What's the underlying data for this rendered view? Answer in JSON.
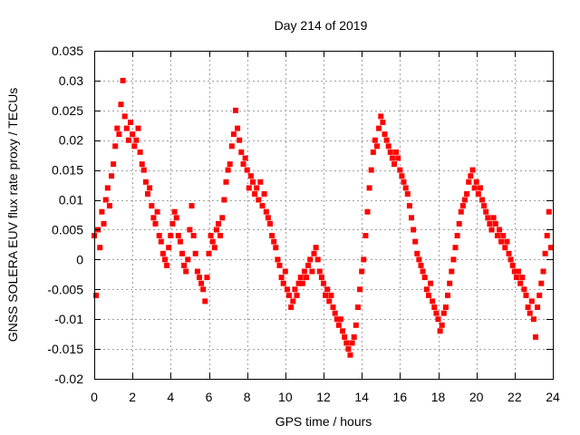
{
  "chart_data": {
    "type": "scatter",
    "title": "Day 214 of 2019",
    "xlabel": "GPS time / hours",
    "ylabel": "GNSS SOLERA EUV flux rate proxy / TECUs",
    "xlim": [
      0,
      24
    ],
    "ylim": [
      -0.02,
      0.035
    ],
    "xticks": [
      0,
      2,
      4,
      6,
      8,
      10,
      12,
      14,
      16,
      18,
      20,
      22,
      24
    ],
    "xtick_labels": [
      "0",
      "2",
      "4",
      "6",
      "8",
      "10",
      "12",
      "14",
      "16",
      "18",
      "20",
      "22",
      "24"
    ],
    "yticks": [
      -0.02,
      -0.015,
      -0.01,
      -0.005,
      0,
      0.005,
      0.01,
      0.015,
      0.02,
      0.025,
      0.03,
      0.035
    ],
    "ytick_labels": [
      "-0.02",
      "-0.015",
      "-0.01",
      "-0.005",
      "0",
      "0.005",
      "0.01",
      "0.015",
      "0.02",
      "0.025",
      "0.03",
      "0.035"
    ],
    "grid": true,
    "marker_color": "#ff0000",
    "marker": "square",
    "series": [
      {
        "points": [
          [
            0.0,
            0.004
          ],
          [
            0.1,
            -0.006
          ],
          [
            0.2,
            0.005
          ],
          [
            0.3,
            0.002
          ],
          [
            0.4,
            0.008
          ],
          [
            0.5,
            0.006
          ],
          [
            0.6,
            0.01
          ],
          [
            0.7,
            0.012
          ],
          [
            0.8,
            0.009
          ],
          [
            0.9,
            0.014
          ],
          [
            1.0,
            0.016
          ],
          [
            1.1,
            0.019
          ],
          [
            1.2,
            0.022
          ],
          [
            1.3,
            0.021
          ],
          [
            1.4,
            0.026
          ],
          [
            1.5,
            0.03
          ],
          [
            1.6,
            0.024
          ],
          [
            1.7,
            0.022
          ],
          [
            1.8,
            0.02
          ],
          [
            1.9,
            0.023
          ],
          [
            2.0,
            0.021
          ],
          [
            2.1,
            0.019
          ],
          [
            2.2,
            0.02
          ],
          [
            2.3,
            0.022
          ],
          [
            2.4,
            0.018
          ],
          [
            2.5,
            0.016
          ],
          [
            2.6,
            0.015
          ],
          [
            2.7,
            0.013
          ],
          [
            2.8,
            0.011
          ],
          [
            2.9,
            0.012
          ],
          [
            3.0,
            0.009
          ],
          [
            3.1,
            0.007
          ],
          [
            3.2,
            0.006
          ],
          [
            3.3,
            0.008
          ],
          [
            3.4,
            0.004
          ],
          [
            3.5,
            0.003
          ],
          [
            3.6,
            0.001
          ],
          [
            3.7,
            0.0
          ],
          [
            3.8,
            -0.001
          ],
          [
            3.9,
            0.002
          ],
          [
            4.0,
            0.004
          ],
          [
            4.1,
            0.006
          ],
          [
            4.2,
            0.008
          ],
          [
            4.3,
            0.007
          ],
          [
            4.4,
            0.004
          ],
          [
            4.5,
            0.003
          ],
          [
            4.6,
            0.001
          ],
          [
            4.7,
            -0.001
          ],
          [
            4.8,
            -0.002
          ],
          [
            4.9,
            0.0
          ],
          [
            5.0,
            0.005
          ],
          [
            5.1,
            0.009
          ],
          [
            5.2,
            0.004
          ],
          [
            5.3,
            0.001
          ],
          [
            5.4,
            -0.002
          ],
          [
            5.5,
            -0.003
          ],
          [
            5.6,
            -0.004
          ],
          [
            5.7,
            -0.005
          ],
          [
            5.8,
            -0.007
          ],
          [
            5.9,
            -0.003
          ],
          [
            6.0,
            0.001
          ],
          [
            6.1,
            0.004
          ],
          [
            6.2,
            0.003
          ],
          [
            6.3,
            0.002
          ],
          [
            6.4,
            0.005
          ],
          [
            6.5,
            0.006
          ],
          [
            6.6,
            0.004
          ],
          [
            6.7,
            0.007
          ],
          [
            6.8,
            0.01
          ],
          [
            6.9,
            0.013
          ],
          [
            7.0,
            0.015
          ],
          [
            7.1,
            0.016
          ],
          [
            7.2,
            0.019
          ],
          [
            7.3,
            0.021
          ],
          [
            7.4,
            0.025
          ],
          [
            7.5,
            0.022
          ],
          [
            7.6,
            0.02
          ],
          [
            7.7,
            0.018
          ],
          [
            7.8,
            0.016
          ],
          [
            7.9,
            0.017
          ],
          [
            8.0,
            0.015
          ],
          [
            8.1,
            0.012
          ],
          [
            8.2,
            0.014
          ],
          [
            8.3,
            0.013
          ],
          [
            8.4,
            0.011
          ],
          [
            8.5,
            0.012
          ],
          [
            8.6,
            0.01
          ],
          [
            8.7,
            0.013
          ],
          [
            8.8,
            0.009
          ],
          [
            8.9,
            0.011
          ],
          [
            9.0,
            0.008
          ],
          [
            9.1,
            0.007
          ],
          [
            9.2,
            0.006
          ],
          [
            9.3,
            0.004
          ],
          [
            9.4,
            0.003
          ],
          [
            9.5,
            0.002
          ],
          [
            9.6,
            0.0
          ],
          [
            9.7,
            -0.001
          ],
          [
            9.8,
            -0.003
          ],
          [
            9.9,
            -0.004
          ],
          [
            10.0,
            -0.002
          ],
          [
            10.1,
            -0.005
          ],
          [
            10.2,
            -0.006
          ],
          [
            10.3,
            -0.008
          ],
          [
            10.4,
            -0.007
          ],
          [
            10.5,
            -0.005
          ],
          [
            10.6,
            -0.006
          ],
          [
            10.7,
            -0.004
          ],
          [
            10.8,
            -0.003
          ],
          [
            10.9,
            -0.004
          ],
          [
            11.0,
            -0.002
          ],
          [
            11.1,
            -0.003
          ],
          [
            11.2,
            -0.001
          ],
          [
            11.3,
            0.0
          ],
          [
            11.4,
            -0.002
          ],
          [
            11.5,
            0.001
          ],
          [
            11.6,
            0.002
          ],
          [
            11.7,
            0.0
          ],
          [
            11.8,
            -0.002
          ],
          [
            11.9,
            -0.003
          ],
          [
            12.0,
            -0.004
          ],
          [
            12.1,
            -0.006
          ],
          [
            12.2,
            -0.005
          ],
          [
            12.3,
            -0.007
          ],
          [
            12.4,
            -0.006
          ],
          [
            12.5,
            -0.008
          ],
          [
            12.6,
            -0.009
          ],
          [
            12.7,
            -0.01
          ],
          [
            12.8,
            -0.011
          ],
          [
            12.9,
            -0.01
          ],
          [
            13.0,
            -0.012
          ],
          [
            13.1,
            -0.013
          ],
          [
            13.2,
            -0.014
          ],
          [
            13.3,
            -0.015
          ],
          [
            13.4,
            -0.016
          ],
          [
            13.5,
            -0.014
          ],
          [
            13.6,
            -0.013
          ],
          [
            13.7,
            -0.011
          ],
          [
            13.8,
            -0.008
          ],
          [
            13.9,
            -0.005
          ],
          [
            14.0,
            -0.002
          ],
          [
            14.1,
            0.0
          ],
          [
            14.2,
            0.004
          ],
          [
            14.3,
            0.008
          ],
          [
            14.4,
            0.012
          ],
          [
            14.5,
            0.015
          ],
          [
            14.6,
            0.018
          ],
          [
            14.7,
            0.02
          ],
          [
            14.8,
            0.019
          ],
          [
            14.9,
            0.022
          ],
          [
            15.0,
            0.024
          ],
          [
            15.1,
            0.023
          ],
          [
            15.2,
            0.021
          ],
          [
            15.3,
            0.02
          ],
          [
            15.4,
            0.019
          ],
          [
            15.5,
            0.018
          ],
          [
            15.6,
            0.017
          ],
          [
            15.7,
            0.016
          ],
          [
            15.8,
            0.018
          ],
          [
            15.9,
            0.017
          ],
          [
            16.0,
            0.015
          ],
          [
            16.1,
            0.014
          ],
          [
            16.2,
            0.013
          ],
          [
            16.3,
            0.012
          ],
          [
            16.4,
            0.011
          ],
          [
            16.5,
            0.009
          ],
          [
            16.6,
            0.007
          ],
          [
            16.7,
            0.005
          ],
          [
            16.8,
            0.003
          ],
          [
            16.9,
            0.001
          ],
          [
            17.0,
            0.0
          ],
          [
            17.1,
            -0.001
          ],
          [
            17.2,
            -0.002
          ],
          [
            17.3,
            -0.003
          ],
          [
            17.4,
            -0.005
          ],
          [
            17.5,
            -0.006
          ],
          [
            17.6,
            -0.004
          ],
          [
            17.7,
            -0.007
          ],
          [
            17.8,
            -0.008
          ],
          [
            17.9,
            -0.009
          ],
          [
            18.0,
            -0.01
          ],
          [
            18.1,
            -0.012
          ],
          [
            18.2,
            -0.011
          ],
          [
            18.3,
            -0.009
          ],
          [
            18.4,
            -0.008
          ],
          [
            18.5,
            -0.006
          ],
          [
            18.6,
            -0.004
          ],
          [
            18.7,
            -0.002
          ],
          [
            18.8,
            0.0
          ],
          [
            18.9,
            0.002
          ],
          [
            19.0,
            0.004
          ],
          [
            19.1,
            0.006
          ],
          [
            19.2,
            0.008
          ],
          [
            19.3,
            0.009
          ],
          [
            19.4,
            0.01
          ],
          [
            19.5,
            0.011
          ],
          [
            19.6,
            0.013
          ],
          [
            19.7,
            0.014
          ],
          [
            19.8,
            0.015
          ],
          [
            19.9,
            0.012
          ],
          [
            20.0,
            0.013
          ],
          [
            20.1,
            0.011
          ],
          [
            20.2,
            0.012
          ],
          [
            20.3,
            0.01
          ],
          [
            20.4,
            0.009
          ],
          [
            20.5,
            0.008
          ],
          [
            20.6,
            0.007
          ],
          [
            20.7,
            0.006
          ],
          [
            20.8,
            0.005
          ],
          [
            20.9,
            0.007
          ],
          [
            21.0,
            0.006
          ],
          [
            21.1,
            0.004
          ],
          [
            21.2,
            0.005
          ],
          [
            21.3,
            0.003
          ],
          [
            21.4,
            0.004
          ],
          [
            21.5,
            0.002
          ],
          [
            21.6,
            0.003
          ],
          [
            21.7,
            0.001
          ],
          [
            21.8,
            0.0
          ],
          [
            21.9,
            -0.001
          ],
          [
            22.0,
            -0.002
          ],
          [
            22.1,
            -0.003
          ],
          [
            22.2,
            -0.002
          ],
          [
            22.3,
            -0.004
          ],
          [
            22.4,
            -0.003
          ],
          [
            22.5,
            -0.005
          ],
          [
            22.6,
            -0.006
          ],
          [
            22.7,
            -0.008
          ],
          [
            22.8,
            -0.009
          ],
          [
            22.9,
            -0.007
          ],
          [
            23.0,
            -0.01
          ],
          [
            23.1,
            -0.013
          ],
          [
            23.2,
            -0.008
          ],
          [
            23.3,
            -0.006
          ],
          [
            23.4,
            -0.004
          ],
          [
            23.5,
            -0.002
          ],
          [
            23.6,
            0.001
          ],
          [
            23.7,
            0.004
          ],
          [
            23.8,
            0.008
          ],
          [
            23.9,
            0.002
          ]
        ]
      }
    ]
  }
}
